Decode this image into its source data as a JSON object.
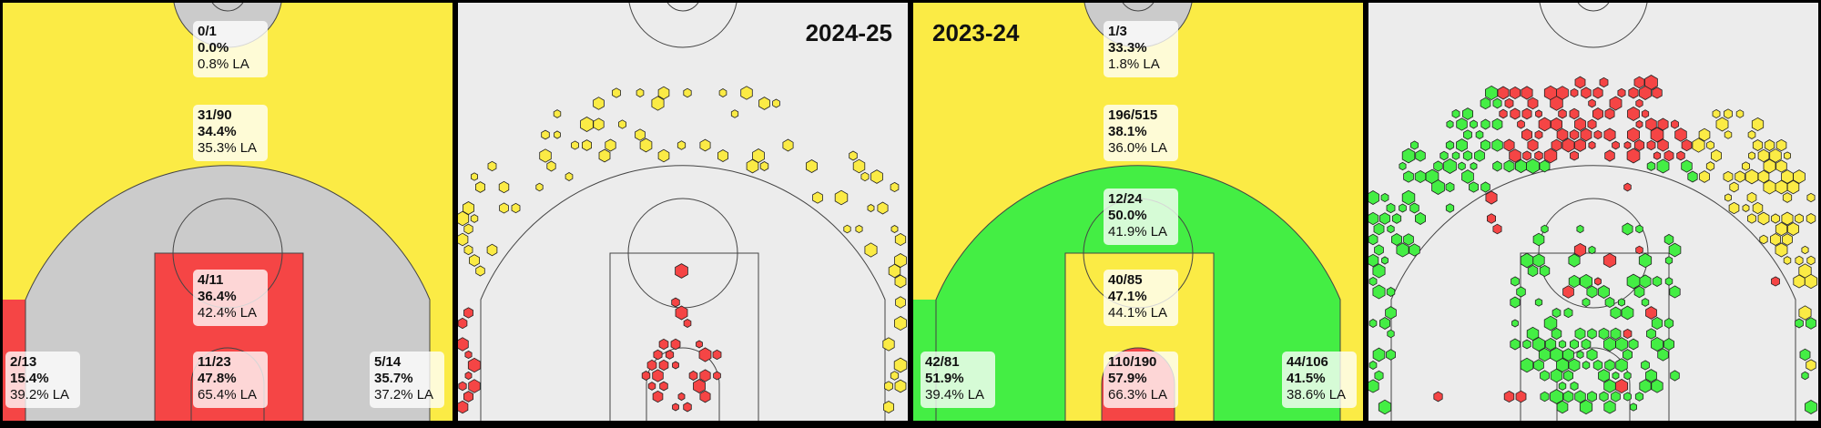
{
  "seasons": [
    {
      "label": "2024-25",
      "zones": [
        {
          "lines": [
            "0/1",
            "0.0%",
            "0.8% LA"
          ]
        },
        {
          "lines": [
            "31/90",
            "34.4%",
            "35.3% LA"
          ]
        },
        {
          "lines": [
            "4/11",
            "36.4%",
            "42.4% LA"
          ]
        },
        {
          "lines": [
            "11/23",
            "47.8%",
            "65.4% LA"
          ]
        },
        {
          "lines": [
            "2/13",
            "15.4%",
            "39.2% LA"
          ]
        },
        {
          "lines": [
            "5/14",
            "35.7%",
            "37.2% LA"
          ]
        }
      ]
    },
    {
      "label": "2023-24",
      "zones": [
        {
          "lines": [
            "1/3",
            "33.3%",
            "1.8% LA"
          ]
        },
        {
          "lines": [
            "196/515",
            "38.1%",
            "36.0% LA"
          ]
        },
        {
          "lines": [
            "12/24",
            "50.0%",
            "41.9% LA"
          ]
        },
        {
          "lines": [
            "40/85",
            "47.1%",
            "44.1% LA"
          ]
        },
        {
          "lines": [
            "110/190",
            "57.9%",
            "66.3% LA"
          ]
        },
        {
          "lines": [
            "42/81",
            "51.9%",
            "39.4% LA"
          ]
        },
        {
          "lines": [
            "44/106",
            "41.5%",
            "38.6% LA"
          ]
        }
      ]
    }
  ]
}
